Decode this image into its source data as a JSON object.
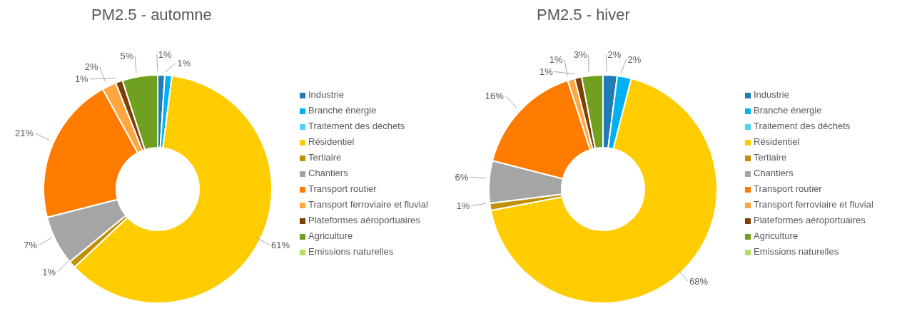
{
  "chart_data": [
    {
      "type": "donut",
      "title": "PM2.5 - automne",
      "legend": "right",
      "categories": [
        "Industrie",
        "Branche énergie",
        "Traitement des déchets",
        "Résidentiel",
        "Tertiaire",
        "Chantiers",
        "Transport routier",
        "Transport ferroviaire et fluvial",
        "Plateformes aéroportuaires",
        "Agriculture",
        "Emissions naturelles"
      ],
      "values": [
        1,
        1,
        0,
        61,
        1,
        7,
        21,
        2,
        1,
        5,
        0
      ],
      "value_labels": [
        "1%",
        "1%",
        null,
        "61%",
        "1%",
        "7%",
        "21%",
        "2%",
        "1%",
        "5%",
        null
      ],
      "colors": [
        "#1f7cb6",
        "#00b0f0",
        "#4fd2ff",
        "#ffcc00",
        "#bf9000",
        "#a5a5a5",
        "#ff7c00",
        "#ffa640",
        "#7f3f00",
        "#70a020",
        "#b4e060"
      ]
    },
    {
      "type": "donut",
      "title": "PM2.5 - hiver",
      "legend": "right",
      "categories": [
        "Industrie",
        "Branche énergie",
        "Traitement des déchets",
        "Résidentiel",
        "Tertiaire",
        "Chantiers",
        "Transport routier",
        "Transport ferroviaire et fluvial",
        "Plateformes aéroportuaires",
        "Agriculture",
        "Emissions naturelles"
      ],
      "values": [
        2,
        2,
        0,
        68,
        1,
        6,
        16,
        1,
        1,
        3,
        0
      ],
      "value_labels": [
        "2%",
        "2%",
        null,
        "68%",
        "1%",
        "6%",
        "16%",
        "1%",
        "1%",
        "3%",
        null
      ],
      "colors": [
        "#1f7cb6",
        "#00b0f0",
        "#4fd2ff",
        "#ffcc00",
        "#bf9000",
        "#a5a5a5",
        "#ff7c00",
        "#ffa640",
        "#7f3f00",
        "#70a020",
        "#b4e060"
      ]
    }
  ]
}
